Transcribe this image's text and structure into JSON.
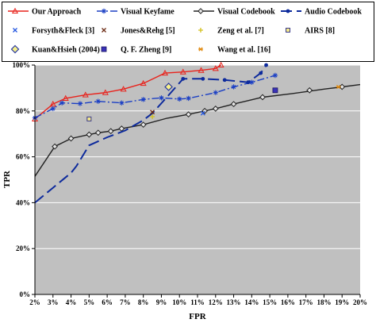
{
  "chart_data": {
    "type": "line",
    "title": "",
    "xlabel": "FPR",
    "ylabel": "TPR",
    "xlim": [
      0.02,
      0.2
    ],
    "ylim": [
      0,
      1.0
    ],
    "x_ticks": [
      "2%",
      "3%",
      "4%",
      "5%",
      "6%",
      "7%",
      "8%",
      "9%",
      "10%",
      "11%",
      "12%",
      "13%",
      "14%",
      "15%",
      "16%",
      "17%",
      "18%",
      "19%",
      "20%"
    ],
    "x_tick_values": [
      0.02,
      0.03,
      0.04,
      0.05,
      0.06,
      0.07,
      0.08,
      0.09,
      0.1,
      0.11,
      0.12,
      0.13,
      0.14,
      0.15,
      0.16,
      0.17,
      0.18,
      0.19,
      0.2
    ],
    "y_ticks": [
      "0%",
      "20%",
      "40%",
      "60%",
      "80%",
      "100%"
    ],
    "y_tick_values": [
      0,
      0.2,
      0.4,
      0.6,
      0.8,
      1.0
    ],
    "grid": "horizontal",
    "legend_position": "top",
    "series": [
      {
        "name": "Our Approach",
        "kind": "line",
        "color": "#e8231c",
        "dash": "",
        "marker": "triangle",
        "x": [
          0.02,
          0.03,
          0.037,
          0.048,
          0.059,
          0.069,
          0.08,
          0.092,
          0.102,
          0.112,
          0.12,
          0.123
        ],
        "y": [
          0.765,
          0.83,
          0.855,
          0.87,
          0.88,
          0.895,
          0.92,
          0.965,
          0.97,
          0.977,
          0.985,
          1.0
        ]
      },
      {
        "name": "Visual Keyfame",
        "kind": "line",
        "color": "#1b3fc4",
        "dash": "9,3,2,3",
        "marker": "star",
        "x": [
          0.02,
          0.03,
          0.035,
          0.045,
          0.055,
          0.068,
          0.08,
          0.09,
          0.1,
          0.105,
          0.12,
          0.13,
          0.14,
          0.153
        ],
        "y": [
          0.77,
          0.81,
          0.835,
          0.832,
          0.842,
          0.835,
          0.85,
          0.857,
          0.852,
          0.855,
          0.88,
          0.905,
          0.925,
          0.955
        ]
      },
      {
        "name": "Visual Codebook",
        "kind": "line",
        "color": "#222222",
        "dash": "",
        "marker": "diamond",
        "x": [
          0.02,
          0.031,
          0.04,
          0.05,
          0.055,
          0.062,
          0.068,
          0.08,
          0.093,
          0.105,
          0.114,
          0.12,
          0.13,
          0.146,
          0.162,
          0.18,
          0.19,
          0.2
        ],
        "y": [
          0.515,
          0.645,
          0.68,
          0.697,
          0.705,
          0.712,
          0.723,
          0.74,
          0.768,
          0.785,
          0.8,
          0.81,
          0.83,
          0.86,
          0.875,
          0.895,
          0.905,
          0.915
        ],
        "marker_x": [
          0.031,
          0.04,
          0.05,
          0.055,
          0.062,
          0.068,
          0.08,
          0.105,
          0.114,
          0.12,
          0.13,
          0.146,
          0.172,
          0.19
        ],
        "marker_y": [
          0.645,
          0.68,
          0.697,
          0.705,
          0.712,
          0.723,
          0.74,
          0.785,
          0.8,
          0.81,
          0.83,
          0.86,
          0.89,
          0.905
        ]
      },
      {
        "name": "Audio Codebook",
        "kind": "line",
        "color": "#0d2a9c",
        "dash": "14,6",
        "marker": "dot",
        "x": [
          0.02,
          0.03,
          0.04,
          0.043,
          0.05,
          0.06,
          0.07,
          0.08,
          0.085,
          0.093,
          0.102,
          0.113,
          0.125,
          0.138,
          0.145,
          0.148
        ],
        "y": [
          0.4,
          0.465,
          0.53,
          0.56,
          0.65,
          0.685,
          0.715,
          0.76,
          0.79,
          0.86,
          0.94,
          0.94,
          0.935,
          0.925,
          0.965,
          1.0
        ],
        "marker_x": [
          0.102,
          0.113,
          0.125,
          0.138,
          0.145,
          0.148
        ],
        "marker_y": [
          0.94,
          0.94,
          0.935,
          0.925,
          0.965,
          1.0
        ]
      },
      {
        "name": "Forsyth&Fleck [3]",
        "kind": "point",
        "color": "#2255e0",
        "marker": "x",
        "x": [
          0.113
        ],
        "y": [
          0.79
        ]
      },
      {
        "name": "Jones&Rehg [5]",
        "kind": "point",
        "color": "#6b2a12",
        "marker": "x",
        "x": [
          0.085
        ],
        "y": [
          0.795
        ]
      },
      {
        "name": "Zeng et al. [7]",
        "kind": "point",
        "color": "#d2c01a",
        "marker": "plus",
        "x": [
          0.085
        ],
        "y": [
          0.775
        ]
      },
      {
        "name": "AIRS [8]",
        "kind": "point",
        "color": "#3a3a8a",
        "marker": "square-open",
        "x": [
          0.05
        ],
        "y": [
          0.765
        ]
      },
      {
        "name": "Kuan&Hsieh (2004)",
        "kind": "point",
        "color": "#2a3aa0",
        "marker": "diamond-yellow",
        "x": [
          0.094
        ],
        "y": [
          0.905
        ]
      },
      {
        "name": "Q. F. Zheng [9]",
        "kind": "point",
        "color": "#3a32b8",
        "marker": "square",
        "x": [
          0.153
        ],
        "y": [
          0.89
        ]
      },
      {
        "name": "Wang et al. [16]",
        "kind": "point",
        "color": "#e08a10",
        "marker": "asterisk",
        "x": [
          0.188
        ],
        "y": [
          0.905
        ]
      }
    ]
  }
}
